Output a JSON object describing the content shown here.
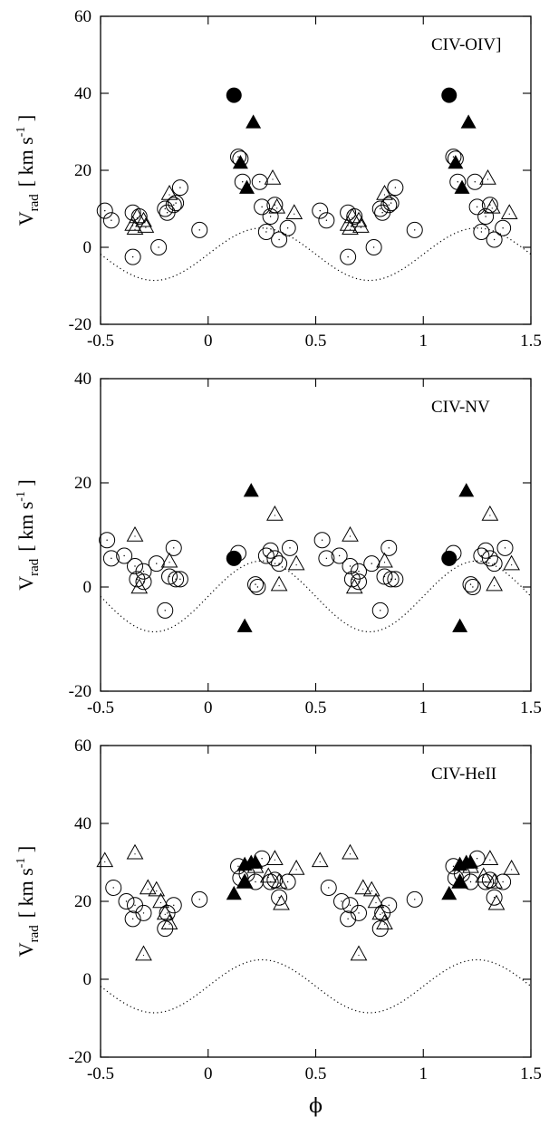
{
  "figure": {
    "xlabel": "ϕ",
    "ylabel_main": "V",
    "ylabel_sub": "rad",
    "ylabel_units": "[ km s",
    "ylabel_units_sup": "-1",
    "ylabel_units_close": " ]"
  },
  "chart_data": [
    {
      "type": "scatter",
      "annotation": "CIV-OIV]",
      "xlim": [
        -0.5,
        1.5
      ],
      "ylim": [
        -20,
        60
      ],
      "xticks": [
        -0.5,
        0,
        0.5,
        1,
        1.5
      ],
      "xtick_labels": [
        "-0.5",
        "0",
        "0.5",
        "1",
        "1.5"
      ],
      "yticks": [
        -20,
        0,
        20,
        40,
        60
      ],
      "ytick_labels": [
        "-20",
        "0",
        "20",
        "40",
        "60"
      ],
      "phase_repeat": 1,
      "model_curve": {
        "style": "dotted",
        "amplitude": 6.8,
        "offset": -1.8,
        "phase_of_max": 0.25
      },
      "series": [
        {
          "marker": "open-circle",
          "points": [
            [
              -0.48,
              9.5
            ],
            [
              -0.45,
              7
            ],
            [
              -0.35,
              9
            ],
            [
              -0.35,
              -2.5
            ],
            [
              -0.32,
              8
            ],
            [
              -0.23,
              0
            ],
            [
              -0.2,
              10
            ],
            [
              -0.19,
              9
            ],
            [
              -0.16,
              11
            ],
            [
              -0.15,
              11.5
            ],
            [
              -0.13,
              15.5
            ],
            [
              -0.04,
              4.5
            ],
            [
              0.14,
              23.5
            ],
            [
              0.15,
              23
            ],
            [
              0.16,
              17
            ],
            [
              0.24,
              17
            ],
            [
              0.25,
              10.5
            ],
            [
              0.27,
              4
            ],
            [
              0.29,
              8
            ],
            [
              0.31,
              11
            ],
            [
              0.33,
              2
            ],
            [
              0.37,
              5
            ]
          ]
        },
        {
          "marker": "open-triangle",
          "points": [
            [
              -0.35,
              6
            ],
            [
              -0.34,
              5
            ],
            [
              -0.33,
              8
            ],
            [
              -0.3,
              7
            ],
            [
              -0.29,
              5.5
            ],
            [
              -0.18,
              14
            ],
            [
              0.3,
              18
            ],
            [
              0.32,
              10.5
            ],
            [
              0.4,
              9
            ]
          ]
        },
        {
          "marker": "filled-circle",
          "points": [
            [
              0.12,
              39.5
            ]
          ]
        },
        {
          "marker": "filled-triangle",
          "points": [
            [
              0.15,
              22
            ],
            [
              0.18,
              15.5
            ],
            [
              0.21,
              32.5
            ]
          ]
        }
      ]
    },
    {
      "type": "scatter",
      "annotation": "CIV-NV",
      "xlim": [
        -0.5,
        1.5
      ],
      "ylim": [
        -20,
        40
      ],
      "xticks": [
        -0.5,
        0,
        0.5,
        1,
        1.5
      ],
      "xtick_labels": [
        "-0.5",
        "0",
        "0.5",
        "1",
        "1.5"
      ],
      "yticks": [
        -20,
        0,
        20,
        40
      ],
      "ytick_labels": [
        "-20",
        "0",
        "20",
        "40"
      ],
      "phase_repeat": 1,
      "model_curve": {
        "style": "dotted",
        "amplitude": 6.8,
        "offset": -1.8,
        "phase_of_max": 0.25
      },
      "series": [
        {
          "marker": "open-circle",
          "points": [
            [
              -0.47,
              9
            ],
            [
              -0.45,
              5.5
            ],
            [
              -0.39,
              6
            ],
            [
              -0.34,
              4
            ],
            [
              -0.33,
              1.5
            ],
            [
              -0.3,
              3
            ],
            [
              -0.3,
              1
            ],
            [
              -0.24,
              4.5
            ],
            [
              -0.2,
              -4.5
            ],
            [
              -0.18,
              2
            ],
            [
              -0.16,
              7.5
            ],
            [
              -0.15,
              1.5
            ],
            [
              -0.13,
              1.5
            ],
            [
              0.14,
              6.5
            ],
            [
              0.22,
              0.5
            ],
            [
              0.23,
              0
            ],
            [
              0.27,
              6
            ],
            [
              0.29,
              7
            ],
            [
              0.31,
              5.5
            ],
            [
              0.33,
              4.5
            ],
            [
              0.38,
              7.5
            ]
          ]
        },
        {
          "marker": "open-triangle",
          "points": [
            [
              -0.34,
              10
            ],
            [
              -0.32,
              0
            ],
            [
              -0.18,
              5
            ],
            [
              0.31,
              14
            ],
            [
              0.33,
              0.5
            ],
            [
              0.41,
              4.5
            ]
          ]
        },
        {
          "marker": "filled-circle",
          "points": [
            [
              0.12,
              5.5
            ]
          ]
        },
        {
          "marker": "filled-triangle",
          "points": [
            [
              0.17,
              -7.5
            ],
            [
              0.2,
              18.5
            ]
          ]
        }
      ]
    },
    {
      "type": "scatter",
      "annotation": "CIV-HeII",
      "xlim": [
        -0.5,
        1.5
      ],
      "ylim": [
        -20,
        60
      ],
      "xticks": [
        -0.5,
        0,
        0.5,
        1,
        1.5
      ],
      "xtick_labels": [
        "-0.5",
        "0",
        "0.5",
        "1",
        "1.5"
      ],
      "yticks": [
        -20,
        0,
        20,
        40,
        60
      ],
      "ytick_labels": [
        "-20",
        "0",
        "20",
        "40",
        "60"
      ],
      "phase_repeat": 1,
      "model_curve": {
        "style": "dotted",
        "amplitude": 6.8,
        "offset": -1.8,
        "phase_of_max": 0.25
      },
      "series": [
        {
          "marker": "open-circle",
          "points": [
            [
              -0.44,
              23.5
            ],
            [
              -0.38,
              20
            ],
            [
              -0.35,
              15.5
            ],
            [
              -0.34,
              19
            ],
            [
              -0.3,
              17
            ],
            [
              -0.2,
              13
            ],
            [
              -0.19,
              17
            ],
            [
              -0.16,
              19
            ],
            [
              -0.04,
              20.5
            ],
            [
              0.14,
              29
            ],
            [
              0.15,
              26
            ],
            [
              0.18,
              27
            ],
            [
              0.22,
              25
            ],
            [
              0.25,
              31
            ],
            [
              0.29,
              25
            ],
            [
              0.31,
              25.5
            ],
            [
              0.33,
              21
            ],
            [
              0.37,
              25
            ]
          ]
        },
        {
          "marker": "open-triangle",
          "points": [
            [
              -0.48,
              30.5
            ],
            [
              -0.34,
              32.5
            ],
            [
              -0.3,
              6.5
            ],
            [
              -0.28,
              23.5
            ],
            [
              -0.24,
              23
            ],
            [
              -0.22,
              20
            ],
            [
              -0.2,
              17
            ],
            [
              -0.18,
              14.5
            ],
            [
              0.17,
              25
            ],
            [
              0.22,
              29
            ],
            [
              0.28,
              26.5
            ],
            [
              0.31,
              31
            ],
            [
              0.33,
              25
            ],
            [
              0.34,
              19.5
            ],
            [
              0.41,
              28.5
            ]
          ]
        },
        {
          "marker": "filled-circle",
          "points": []
        },
        {
          "marker": "filled-triangle",
          "points": [
            [
              0.12,
              22
            ],
            [
              0.17,
              25
            ],
            [
              0.17,
              29.5
            ],
            [
              0.2,
              30
            ],
            [
              0.22,
              30
            ]
          ]
        }
      ]
    }
  ]
}
